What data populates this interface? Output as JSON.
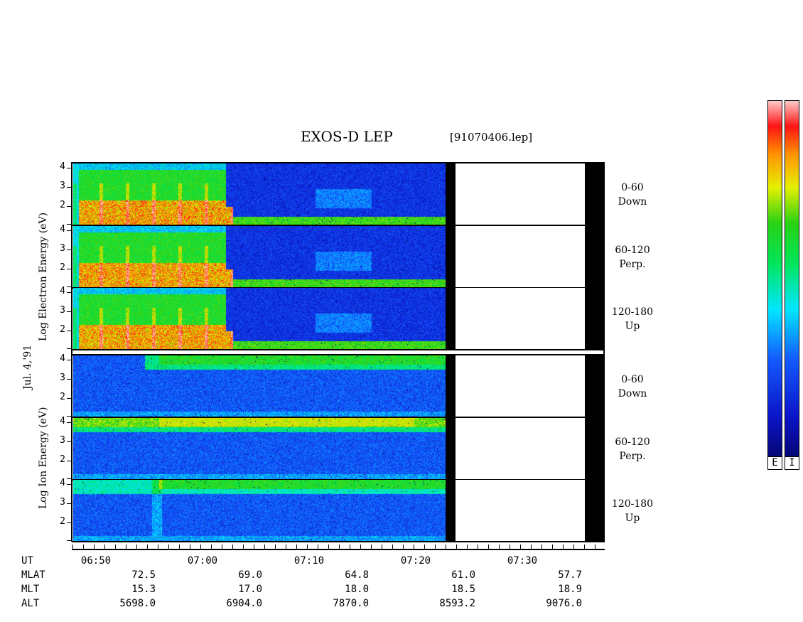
{
  "header": {
    "title": "EXOS-D LEP",
    "file": "[91070406.lep]"
  },
  "date_label": "Jul. 4,'91",
  "electron_axis_label": "Log Electron Energy (eV)",
  "ion_axis_label": "Log Ion Energy (eV)",
  "colorbar": {
    "e_label": "E",
    "i_label": "I"
  },
  "panels": [
    {
      "group": "electron",
      "range": "0-60",
      "dir": "Down"
    },
    {
      "group": "electron",
      "range": "60-120",
      "dir": "Perp."
    },
    {
      "group": "electron",
      "range": "120-180",
      "dir": "Up"
    },
    {
      "group": "ion",
      "range": "0-60",
      "dir": "Down"
    },
    {
      "group": "ion",
      "range": "60-120",
      "dir": "Perp."
    },
    {
      "group": "ion",
      "range": "120-180",
      "dir": "Up"
    }
  ],
  "y_ticks": [
    "4",
    "3",
    "2"
  ],
  "time_axis": {
    "row_labels": [
      "UT",
      "MLAT",
      "MLT",
      "ALT"
    ],
    "ticks": [
      {
        "UT": "06:50",
        "MLAT": "72.5",
        "MLT": "15.3",
        "ALT": "5698.0"
      },
      {
        "UT": "07:00",
        "MLAT": "69.0",
        "MLT": "17.0",
        "ALT": "6904.0"
      },
      {
        "UT": "07:10",
        "MLAT": "64.8",
        "MLT": "18.0",
        "ALT": "7870.0"
      },
      {
        "UT": "07:20",
        "MLAT": "61.0",
        "MLT": "18.5",
        "ALT": "8593.2"
      },
      {
        "UT": "07:30",
        "MLAT": "57.7",
        "MLT": "18.9",
        "ALT": "9076.0"
      }
    ]
  },
  "chart_data": {
    "type": "heatmap",
    "title": "EXOS-D LEP",
    "x_axis": "UT",
    "x_range": [
      "06:46",
      "07:36"
    ],
    "data_end_ut": "07:21",
    "y_label": "Log Energy (eV)",
    "y_range": [
      1,
      4
    ],
    "electron_event": {
      "ut_start": "06:46",
      "ut_end": "07:01",
      "band_log_energy": [
        1,
        4
      ],
      "after_band_log_energy": 1.3
    },
    "ion_event": {
      "ut_start": "06:55",
      "ut_end": "07:21",
      "band_log_energy": [
        3.5,
        4
      ]
    }
  }
}
